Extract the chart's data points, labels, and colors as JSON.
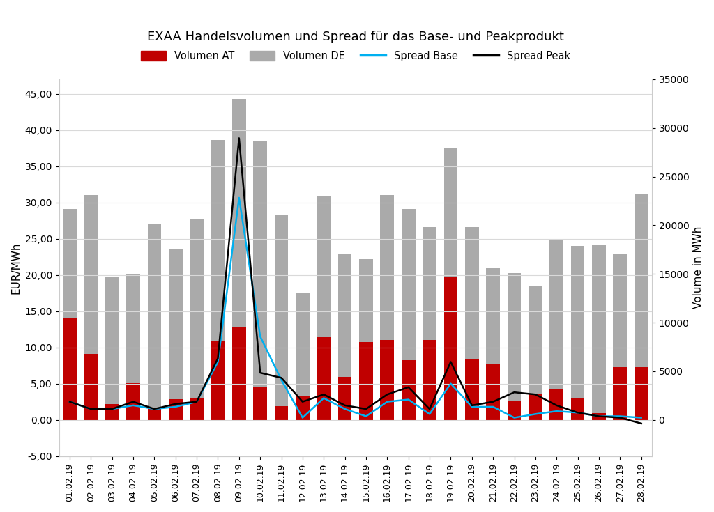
{
  "title": "EXAA Handelsvolumen und Spread für das Base- und Peakprodukt",
  "dates": [
    "01.02.19",
    "02.02.19",
    "03.02.19",
    "04.02.19",
    "05.02.19",
    "06.02.19",
    "07.02.19",
    "08.02.19",
    "09.02.19",
    "10.02.19",
    "11.02.19",
    "12.02.19",
    "13.02.19",
    "14.02.19",
    "15.02.19",
    "16.02.19",
    "17.02.19",
    "18.02.19",
    "19.02.19",
    "20.02.19",
    "21.02.19",
    "22.02.19",
    "23.02.19",
    "24.02.19",
    "25.02.19",
    "26.02.19",
    "27.02.19",
    "28.02.19"
  ],
  "volumen_AT": [
    10500,
    6800,
    1600,
    3800,
    1200,
    2100,
    2200,
    8100,
    9500,
    3400,
    1400,
    2500,
    8500,
    4400,
    8000,
    8200,
    6100,
    8200,
    14700,
    6200,
    5700,
    1900,
    2600,
    3100,
    2200,
    700,
    5400,
    5400
  ],
  "volumen_DE": [
    21700,
    23100,
    14700,
    15000,
    20200,
    17600,
    20700,
    28800,
    33000,
    28700,
    21100,
    13000,
    23000,
    17000,
    16500,
    23100,
    21700,
    19800,
    27900,
    19800,
    15600,
    15100,
    13800,
    18500,
    17900,
    18000,
    17000,
    23200
  ],
  "spread_base": [
    2.5,
    1.5,
    1.5,
    2.0,
    1.5,
    1.8,
    2.5,
    8.0,
    30.65,
    11.5,
    5.5,
    0.3,
    3.0,
    1.5,
    0.5,
    2.5,
    2.8,
    0.8,
    5.0,
    1.8,
    1.8,
    0.3,
    0.8,
    1.2,
    1.0,
    0.5,
    0.5,
    0.3
  ],
  "spread_peak": [
    2.5,
    1.5,
    1.5,
    2.5,
    1.5,
    2.2,
    2.5,
    8.5,
    38.88,
    6.5,
    5.8,
    2.5,
    3.5,
    2.0,
    1.5,
    3.5,
    4.5,
    1.5,
    8.0,
    2.0,
    2.5,
    3.8,
    3.5,
    2.0,
    1.0,
    0.5,
    0.3,
    -0.5
  ],
  "bar_color_AT": "#c00000",
  "bar_color_DE": "#aaaaaa",
  "line_color_base": "#00b0f0",
  "line_color_peak": "#000000",
  "ylabel_left": "EUR/MWh",
  "ylabel_right": "Volume in MWh",
  "ylim_left": [
    -5.0,
    47.0
  ],
  "ylim_right": [
    0,
    36296
  ],
  "yticks_left": [
    -5.0,
    0.0,
    5.0,
    10.0,
    15.0,
    20.0,
    25.0,
    30.0,
    35.0,
    40.0,
    45.0
  ],
  "yticks_right": [
    0,
    5000,
    10000,
    15000,
    20000,
    25000,
    30000,
    35000
  ],
  "legend_labels": [
    "Volumen AT",
    "Volumen DE",
    "Spread Base",
    "Spread Peak"
  ],
  "background_color": "#ffffff",
  "grid_color": "#d9d9d9"
}
